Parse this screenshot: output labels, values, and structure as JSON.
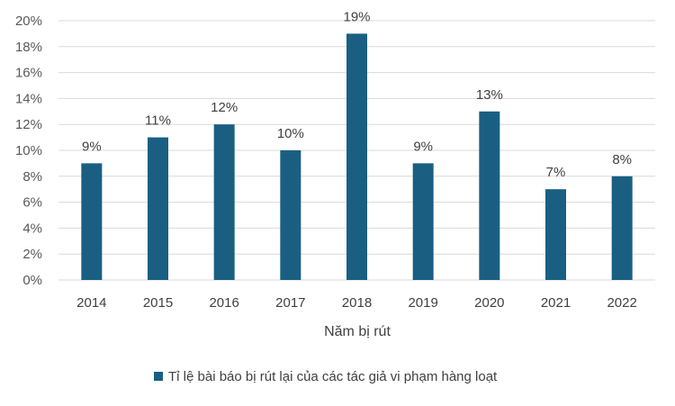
{
  "chart_data": {
    "type": "bar",
    "categories": [
      "2014",
      "2015",
      "2016",
      "2017",
      "2018",
      "2019",
      "2020",
      "2021",
      "2022"
    ],
    "series": [
      {
        "name": "Tỉ lệ bài báo bị rút lại của các tác giả vi phạm hàng loạt",
        "values": [
          9,
          11,
          12,
          10,
          19,
          9,
          13,
          7,
          8
        ],
        "data_labels": [
          "9%",
          "11%",
          "12%",
          "10%",
          "19%",
          "9%",
          "13%",
          "7%",
          "8%"
        ]
      }
    ],
    "xlabel": "Năm bị rút",
    "ylabel": "",
    "ylim": [
      0,
      20
    ],
    "yticks": [
      "0%",
      "2%",
      "4%",
      "6%",
      "8%",
      "10%",
      "12%",
      "14%",
      "16%",
      "18%",
      "20%"
    ],
    "grid": true,
    "legend": "bottom",
    "colors": {
      "bar": "#1a5f82",
      "grid": "#d9d9d9"
    }
  }
}
